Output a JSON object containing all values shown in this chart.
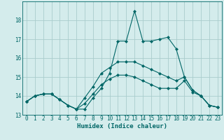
{
  "xlabel": "Humidex (Indice chaleur)",
  "ylabel": "",
  "bg_color": "#d4ecec",
  "grid_color": "#aacccc",
  "line_color": "#006666",
  "xlim": [
    -0.5,
    23.5
  ],
  "ylim": [
    13,
    19
  ],
  "yticks": [
    13,
    14,
    15,
    16,
    17,
    18
  ],
  "xticks": [
    0,
    1,
    2,
    3,
    4,
    5,
    6,
    7,
    8,
    9,
    10,
    11,
    12,
    13,
    14,
    15,
    16,
    17,
    18,
    19,
    20,
    21,
    22,
    23
  ],
  "series": [
    {
      "x": [
        0,
        1,
        2,
        3,
        4,
        5,
        6,
        7,
        8,
        9,
        10,
        11,
        12,
        13,
        14,
        15,
        16,
        17,
        18,
        19,
        20,
        21,
        22,
        23
      ],
      "y": [
        13.7,
        14.0,
        14.1,
        14.1,
        13.8,
        13.5,
        13.3,
        13.3,
        13.9,
        14.4,
        15.2,
        16.9,
        16.9,
        18.5,
        16.9,
        16.9,
        17.0,
        17.1,
        16.5,
        15.0,
        14.3,
        14.0,
        13.5,
        13.4
      ],
      "marker": "D",
      "markersize": 2.0
    },
    {
      "x": [
        0,
        1,
        2,
        3,
        4,
        5,
        6,
        7,
        8,
        9,
        10,
        11,
        12,
        13,
        14,
        15,
        16,
        17,
        18,
        19,
        20,
        21,
        22,
        23
      ],
      "y": [
        13.7,
        14.0,
        14.1,
        14.1,
        13.8,
        13.5,
        13.3,
        13.9,
        14.5,
        15.2,
        15.5,
        15.8,
        15.8,
        15.8,
        15.6,
        15.4,
        15.2,
        15.0,
        14.8,
        15.0,
        14.3,
        14.0,
        13.5,
        13.4
      ],
      "marker": "D",
      "markersize": 2.0
    },
    {
      "x": [
        0,
        1,
        2,
        3,
        4,
        5,
        6,
        7,
        8,
        9,
        10,
        11,
        12,
        13,
        14,
        15,
        16,
        17,
        18,
        19,
        20,
        21,
        22,
        23
      ],
      "y": [
        13.7,
        14.0,
        14.1,
        14.1,
        13.8,
        13.5,
        13.3,
        13.6,
        14.1,
        14.6,
        14.9,
        15.1,
        15.1,
        15.0,
        14.8,
        14.6,
        14.4,
        14.4,
        14.4,
        14.8,
        14.2,
        14.0,
        13.5,
        13.4
      ],
      "marker": "D",
      "markersize": 2.0
    }
  ],
  "xlabel_fontsize": 6.5,
  "tick_fontsize": 5.5,
  "linewidth": 0.8
}
